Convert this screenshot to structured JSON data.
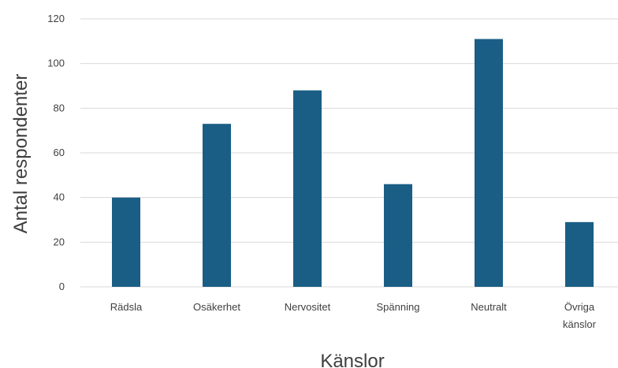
{
  "colors": {
    "bar": "#1a5e85",
    "grid": "#d9d9d9",
    "text": "#404040"
  },
  "chart_data": {
    "type": "bar",
    "title": "",
    "categories": [
      [
        "Rädsla"
      ],
      [
        "Osäkerhet"
      ],
      [
        "Nervositet"
      ],
      [
        "Spänning"
      ],
      [
        "Neutralt"
      ],
      [
        "Övriga",
        "känslor"
      ]
    ],
    "values": [
      40,
      73,
      88,
      46,
      111,
      29
    ],
    "xlabel": "Känslor",
    "ylabel": "Antal respondenter",
    "ylim": [
      0,
      120
    ],
    "yticks": [
      0,
      20,
      40,
      60,
      80,
      100,
      120
    ],
    "grid": true,
    "legend": "none"
  }
}
